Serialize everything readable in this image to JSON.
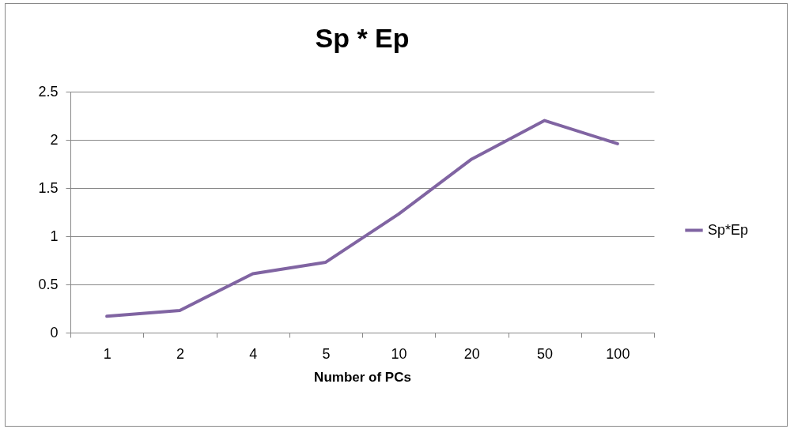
{
  "chart_data": {
    "type": "line",
    "title": "Sp * Ep",
    "xlabel": "Number of PCs",
    "categories": [
      "1",
      "2",
      "4",
      "5",
      "10",
      "20",
      "50",
      "100"
    ],
    "series": [
      {
        "name": "Sp*Ep",
        "color": "#8064a2",
        "values": [
          0.17,
          0.23,
          0.61,
          0.73,
          1.23,
          1.8,
          2.2,
          1.96
        ]
      }
    ],
    "ylim": [
      0,
      2.5
    ],
    "yticks": [
      0,
      0.5,
      1,
      1.5,
      2,
      2.5
    ],
    "grid": "y",
    "legend": "right",
    "marker": "none",
    "line_style": "solid"
  }
}
